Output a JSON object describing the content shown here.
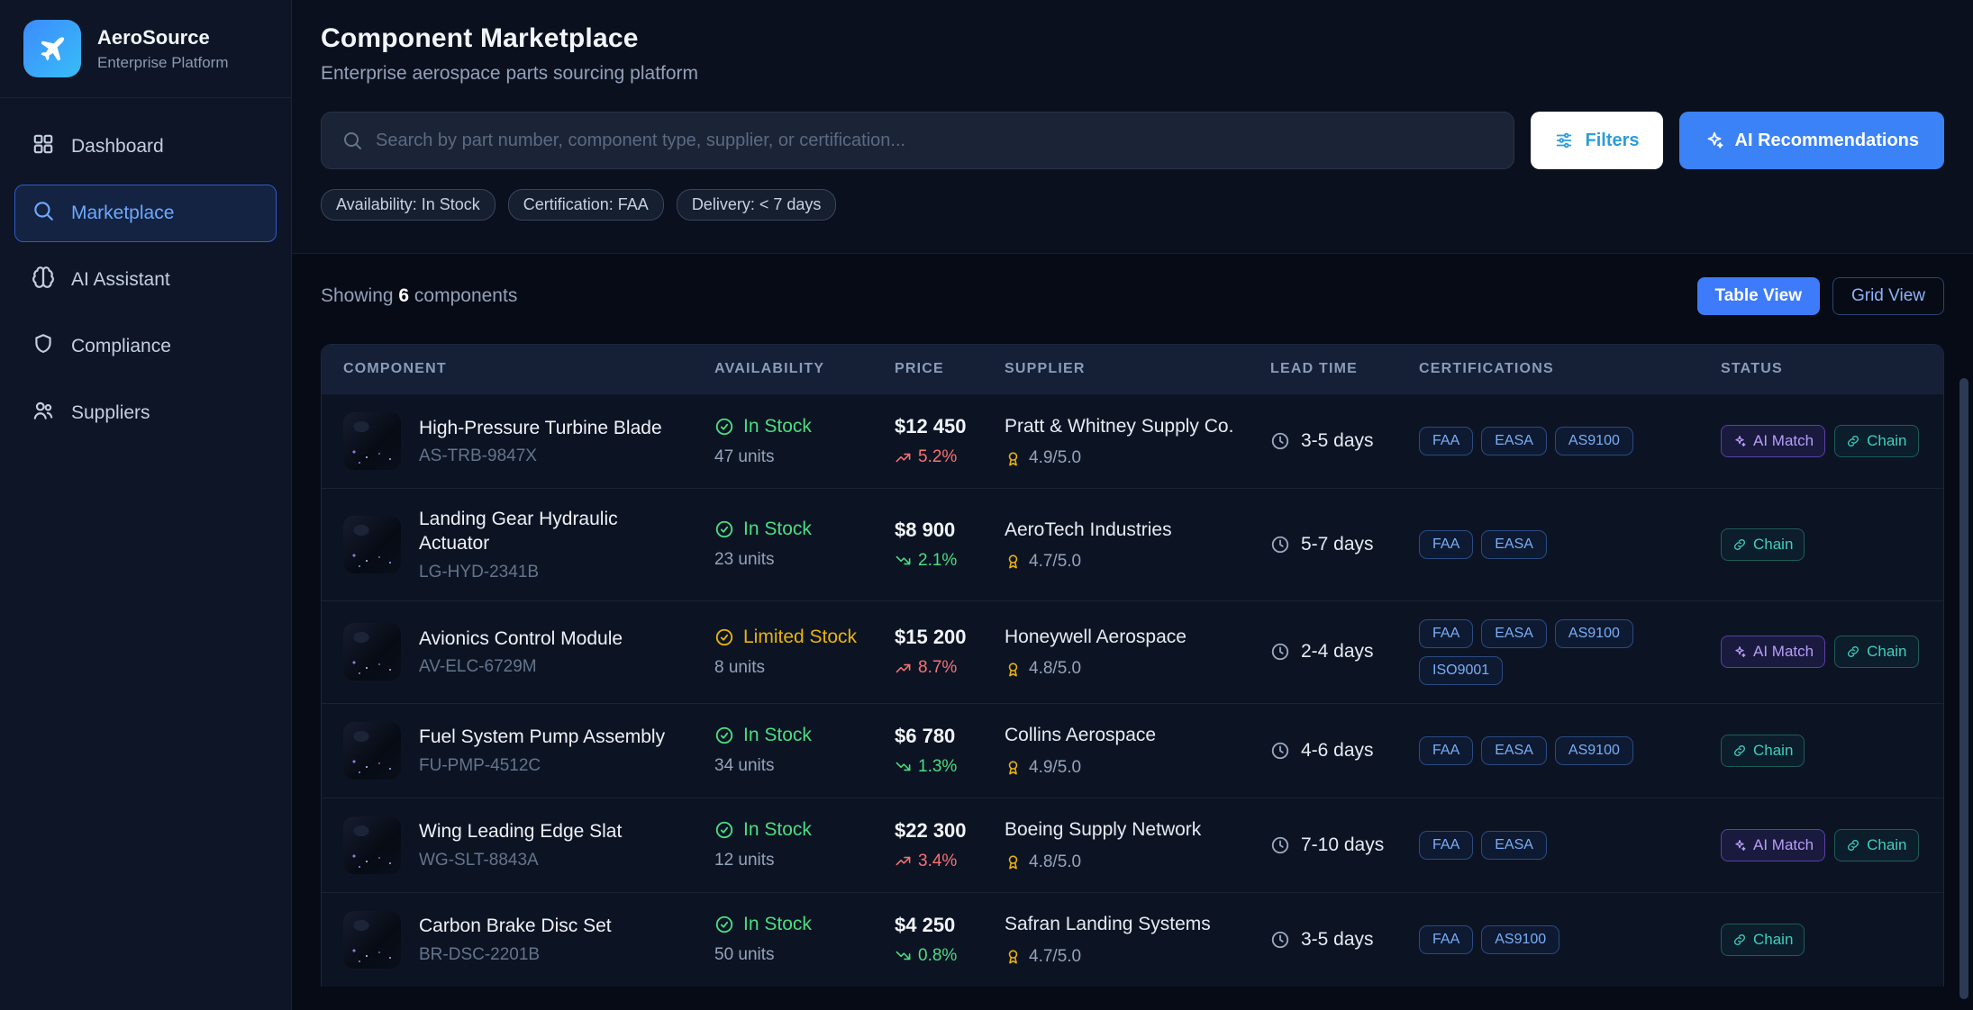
{
  "colors": {
    "accent_blue": "#3b82f6",
    "green": "#4ade80",
    "yellow": "#eab308",
    "red": "#f87171",
    "purple": "#b79df7",
    "teal": "#3ccfc0",
    "sidebar_bg": "#0d1526",
    "page_bg": "#060b16"
  },
  "sidebar": {
    "brand": {
      "name": "AeroSource",
      "subtitle": "Enterprise Platform",
      "logo_icon": "airplane-icon"
    },
    "items": [
      {
        "label": "Dashboard",
        "icon": "dashboard-icon",
        "active": false
      },
      {
        "label": "Marketplace",
        "icon": "search-icon",
        "active": true
      },
      {
        "label": "AI Assistant",
        "icon": "brain-icon",
        "active": false
      },
      {
        "label": "Compliance",
        "icon": "shield-icon",
        "active": false
      },
      {
        "label": "Suppliers",
        "icon": "users-icon",
        "active": false
      }
    ]
  },
  "header": {
    "title": "Component Marketplace",
    "subtitle": "Enterprise aerospace parts sourcing platform",
    "search_placeholder": "Search by part number, component type, supplier, or certification...",
    "filters_label": "Filters",
    "filters_icon": "sliders-icon",
    "ai_button_label": "AI Recommendations",
    "ai_button_icon": "sparkles-icon",
    "chips": [
      "Availability: In Stock",
      "Certification: FAA",
      "Delivery: < 7 days"
    ]
  },
  "toolbar": {
    "showing_prefix": "Showing ",
    "showing_count": "6",
    "showing_suffix": " components",
    "table_view_label": "Table View",
    "grid_view_label": "Grid View"
  },
  "table": {
    "columns": [
      "COMPONENT",
      "AVAILABILITY",
      "PRICE",
      "SUPPLIER",
      "LEAD TIME",
      "CERTIFICATIONS",
      "STATUS"
    ],
    "badge_labels": {
      "ai_match": "AI Match",
      "chain": "Chain"
    },
    "rows": [
      {
        "name": "High-Pressure Turbine Blade",
        "part": "AS-TRB-9847X",
        "availability": {
          "label": "In Stock",
          "status": "in",
          "units": "47 units"
        },
        "price": {
          "amount": "$12 450",
          "change": "5.2%",
          "direction": "up"
        },
        "supplier": {
          "name": "Pratt & Whitney Supply Co.",
          "rating": "4.9/5.0"
        },
        "lead_time": "3-5 days",
        "certs": [
          "FAA",
          "EASA",
          "AS9100"
        ],
        "status": {
          "ai_match": true,
          "chain": true
        }
      },
      {
        "name": "Landing Gear Hydraulic Actuator",
        "part": "LG-HYD-2341B",
        "availability": {
          "label": "In Stock",
          "status": "in",
          "units": "23 units"
        },
        "price": {
          "amount": "$8 900",
          "change": "2.1%",
          "direction": "down"
        },
        "supplier": {
          "name": "AeroTech Industries",
          "rating": "4.7/5.0"
        },
        "lead_time": "5-7 days",
        "certs": [
          "FAA",
          "EASA"
        ],
        "status": {
          "ai_match": false,
          "chain": true
        }
      },
      {
        "name": "Avionics Control Module",
        "part": "AV-ELC-6729M",
        "availability": {
          "label": "Limited Stock",
          "status": "limited",
          "units": "8 units"
        },
        "price": {
          "amount": "$15 200",
          "change": "8.7%",
          "direction": "up"
        },
        "supplier": {
          "name": "Honeywell Aerospace",
          "rating": "4.8/5.0"
        },
        "lead_time": "2-4 days",
        "certs": [
          "FAA",
          "EASA",
          "AS9100",
          "ISO9001"
        ],
        "status": {
          "ai_match": true,
          "chain": true
        }
      },
      {
        "name": "Fuel System Pump Assembly",
        "part": "FU-PMP-4512C",
        "availability": {
          "label": "In Stock",
          "status": "in",
          "units": "34 units"
        },
        "price": {
          "amount": "$6 780",
          "change": "1.3%",
          "direction": "down"
        },
        "supplier": {
          "name": "Collins Aerospace",
          "rating": "4.9/5.0"
        },
        "lead_time": "4-6 days",
        "certs": [
          "FAA",
          "EASA",
          "AS9100"
        ],
        "status": {
          "ai_match": false,
          "chain": true
        }
      },
      {
        "name": "Wing Leading Edge Slat",
        "part": "WG-SLT-8843A",
        "availability": {
          "label": "In Stock",
          "status": "in",
          "units": "12 units"
        },
        "price": {
          "amount": "$22 300",
          "change": "3.4%",
          "direction": "up"
        },
        "supplier": {
          "name": "Boeing Supply Network",
          "rating": "4.8/5.0"
        },
        "lead_time": "7-10 days",
        "certs": [
          "FAA",
          "EASA"
        ],
        "status": {
          "ai_match": true,
          "chain": true
        }
      },
      {
        "name": "Carbon Brake Disc Set",
        "part": "BR-DSC-2201B",
        "availability": {
          "label": "In Stock",
          "status": "in",
          "units": "50 units"
        },
        "price": {
          "amount": "$4 250",
          "change": "0.8%",
          "direction": "down"
        },
        "supplier": {
          "name": "Safran Landing Systems",
          "rating": "4.7/5.0"
        },
        "lead_time": "3-5 days",
        "certs": [
          "FAA",
          "AS9100"
        ],
        "status": {
          "ai_match": false,
          "chain": true
        }
      }
    ]
  }
}
